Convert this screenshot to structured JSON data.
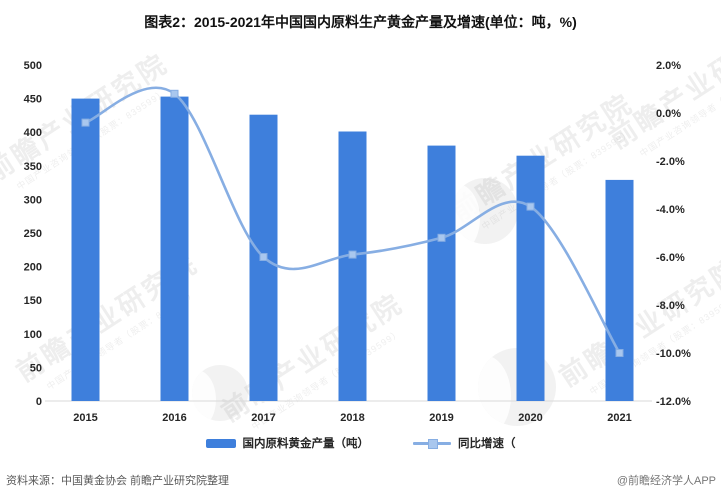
{
  "title": "图表2：2015-2021年中国国内原料生产黄金产量及增速(单位：吨，%)",
  "chart_data": {
    "type": "bar",
    "subtype": "bar+line combo, dual axis",
    "categories": [
      "2015",
      "2016",
      "2017",
      "2018",
      "2019",
      "2020",
      "2021"
    ],
    "series": [
      {
        "name": "国内原料黄金产量（吨）",
        "type": "bar",
        "axis": "left",
        "values": [
          450,
          453,
          426,
          401,
          380,
          365,
          329
        ]
      },
      {
        "name": "同比增速（",
        "type": "line",
        "axis": "right",
        "values": [
          -0.4,
          0.8,
          -6.0,
          -5.9,
          -5.2,
          -3.9,
          -10.0
        ]
      }
    ],
    "left_axis": {
      "min": 0,
      "max": 500,
      "step": 50,
      "ticks": [
        "500",
        "450",
        "400",
        "350",
        "300",
        "250",
        "200",
        "150",
        "100",
        "50",
        "0"
      ]
    },
    "right_axis": {
      "min": -12,
      "max": 2,
      "step": 2,
      "ticks": [
        "2.0%",
        "0.0%",
        "-2.0%",
        "-4.0%",
        "-6.0%",
        "-8.0%",
        "-10.0%",
        "-12.0%"
      ]
    },
    "grid": false,
    "legend_position": "bottom"
  },
  "legend": {
    "bar_label": "国内原料黄金产量（吨）",
    "line_label": "同比增速（"
  },
  "footer": {
    "source": "资料来源：中国黄金协会 前瞻产业研究院整理",
    "brand": "@前瞻经济学人APP"
  },
  "watermark": {
    "text": "前瞻产业研究院",
    "subtext": "中国产业咨询领导者（股票：839599）"
  },
  "colors": {
    "bar": "#3e7fdc",
    "line": "#87aee3",
    "marker_fill": "#a9c7ee",
    "axis_line": "#d9d9d9",
    "tick_text": "#262626"
  }
}
